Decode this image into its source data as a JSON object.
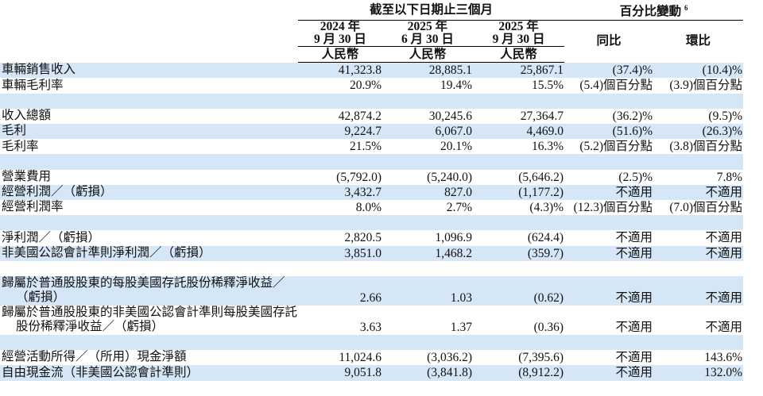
{
  "header": {
    "group_period": "截至以下日期止三個月",
    "group_change": "百分比變動",
    "group_change_note": "6",
    "columns": [
      {
        "line1": "2024 年",
        "line2": "9 月 30 日",
        "unit": "人民幣"
      },
      {
        "line1": "2025 年",
        "line2": "6 月 30 日",
        "unit": "人民幣"
      },
      {
        "line1": "2025 年",
        "line2": "9 月 30 日",
        "unit": "人民幣"
      },
      {
        "label": "同比"
      },
      {
        "label": "環比"
      }
    ]
  },
  "sections": [
    [
      {
        "label": "車輛銷售收入",
        "values": [
          "41,323.8",
          "28,885.1",
          "25,867.1",
          "(37.4)%",
          "(10.4)%"
        ]
      },
      {
        "label": "車輛毛利率",
        "values": [
          "20.9%",
          "19.4%",
          "15.5%",
          "(5.4)個百分點",
          "(3.9)個百分點"
        ]
      }
    ],
    [
      {
        "label": "收入總額",
        "values": [
          "42,874.2",
          "30,245.6",
          "27,364.7",
          "(36.2)%",
          "(9.5)%"
        ]
      },
      {
        "label": "毛利",
        "values": [
          "9,224.7",
          "6,067.0",
          "4,469.0",
          "(51.6)%",
          "(26.3)%"
        ]
      },
      {
        "label": "毛利率",
        "values": [
          "21.5%",
          "20.1%",
          "16.3%",
          "(5.2)個百分點",
          "(3.8)個百分點"
        ]
      }
    ],
    [
      {
        "label": "營業費用",
        "values": [
          "(5,792.0)",
          "(5,240.0)",
          "(5,646.2)",
          "(2.5)%",
          "7.8%"
        ]
      },
      {
        "label": "經營利潤／（虧損）",
        "values": [
          "3,432.7",
          "827.0",
          "(1,177.2)",
          "不適用",
          "不適用"
        ]
      },
      {
        "label": "經營利潤率",
        "values": [
          "8.0%",
          "2.7%",
          "(4.3)%",
          "(12.3)個百分點",
          "(7.0)個百分點"
        ]
      }
    ],
    [
      {
        "label": "淨利潤／（虧損）",
        "values": [
          "2,820.5",
          "1,096.9",
          "(624.4)",
          "不適用",
          "不適用"
        ]
      },
      {
        "label": "非美國公認會計準則淨利潤／（虧損）",
        "values": [
          "3,851.0",
          "1,468.2",
          "(359.7)",
          "不適用",
          "不適用"
        ]
      }
    ],
    [
      {
        "label": "歸屬於普通股股東的每股美國存託股份稀釋淨收益／（虧損）",
        "values": [
          "2.66",
          "1.03",
          "(0.62)",
          "不適用",
          "不適用"
        ]
      },
      {
        "label": "歸屬於普通股股東的非美國公認會計準則每股美國存託股份稀釋淨收益／（虧損）",
        "values": [
          "3.63",
          "1.37",
          "(0.36)",
          "不適用",
          "不適用"
        ]
      }
    ],
    [
      {
        "label": "經營活動所得／（所用）現金淨額",
        "values": [
          "11,024.6",
          "(3,036.2)",
          "(7,395.6)",
          "不適用",
          "143.6%"
        ]
      },
      {
        "label": "自由現金流（非美國公認會計準則）",
        "values": [
          "9,051.8",
          "(3,841.8)",
          "(8,912.2)",
          "不適用",
          "132.0%"
        ]
      }
    ]
  ]
}
